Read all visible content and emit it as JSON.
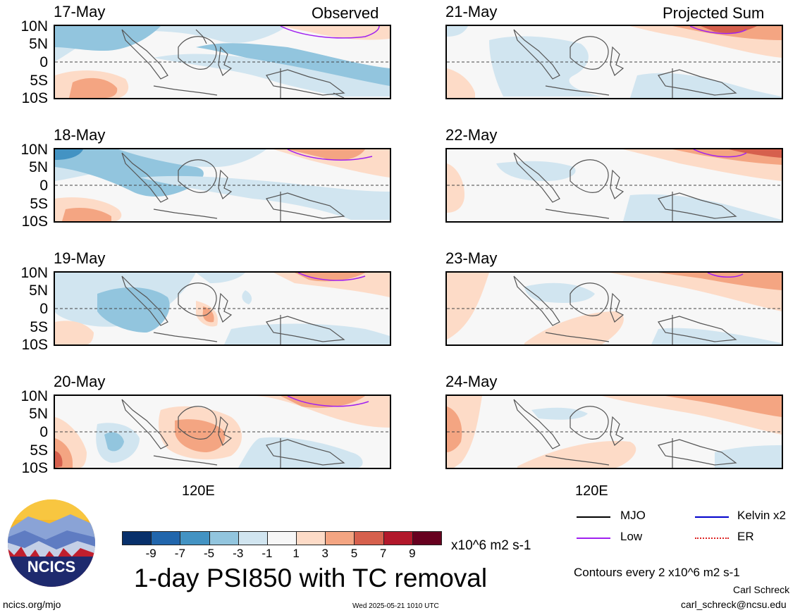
{
  "panels_left_header": "Observed",
  "panels_right_header": "Projected Sum",
  "latitude_labels": [
    "10N",
    "5N",
    "0",
    "5S",
    "10S"
  ],
  "longitude_label": "120E",
  "left_dates": [
    "17-May",
    "18-May",
    "19-May",
    "20-May"
  ],
  "right_dates": [
    "21-May",
    "22-May",
    "23-May",
    "24-May"
  ],
  "colorbar": {
    "labels": [
      "-9",
      "-7",
      "-5",
      "-3",
      "-1",
      "1",
      "3",
      "5",
      "7",
      "9"
    ],
    "colors": [
      "#08306b",
      "#2166ac",
      "#4393c3",
      "#92c5de",
      "#d1e5f0",
      "#f7f7f7",
      "#fddbc7",
      "#f4a582",
      "#d6604d",
      "#b2182b",
      "#67001f"
    ],
    "units": "x10^6 m2 s-1"
  },
  "title": "1-day PSI850 with TC removal",
  "legend": {
    "items": [
      {
        "label": "MJO",
        "color": "#000000",
        "style": "solid"
      },
      {
        "label": "Kelvin x2",
        "color": "#0000cc",
        "style": "solid"
      },
      {
        "label": "Low",
        "color": "#a020f0",
        "style": "solid"
      },
      {
        "label": "ER",
        "color": "#dd2222",
        "style": "dotted"
      }
    ],
    "contour_note": "Contours every 2 x10^6 m2 s-1"
  },
  "logo": {
    "text": "NCICS"
  },
  "footer": {
    "url": "ncics.org/mjo",
    "timestamp": "Wed 2025-05-21 1010 UTC",
    "author": "Carl Schreck",
    "email": "carl_schreck@ncsu.edu"
  }
}
